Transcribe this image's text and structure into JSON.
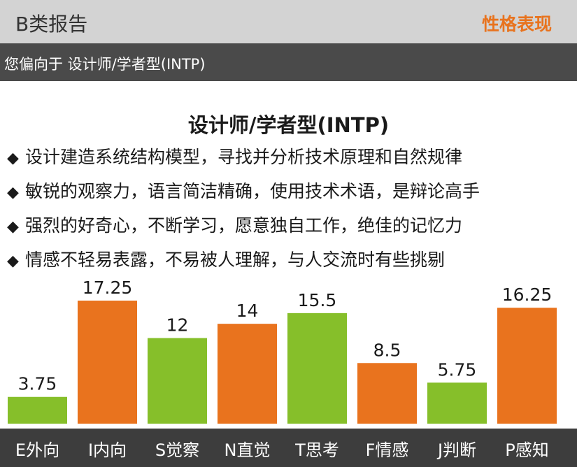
{
  "header": {
    "report_title": "B类报告",
    "section_label": "性格表现"
  },
  "subheader": {
    "text": "您偏向于 设计师/学者型(INTP)"
  },
  "content": {
    "type_title": "设计师/学者型(INTP)",
    "bullet_icon": "diamond-bullet-icon",
    "traits": [
      "设计建造系统结构模型，寻找并分析技术原理和自然规律",
      "敏锐的观察力，语言简洁精确，使用技术术语，是辩论高手",
      "强烈的好奇心，不断学习，愿意独自工作，绝佳的记忆力",
      "情感不轻易表露，不易被人理解，与人交流时有些挑剔"
    ]
  },
  "colors": {
    "green": "#86bf2a",
    "orange": "#e9731e",
    "accent_text": "#e8731e",
    "header_bg": "#d3d3d3",
    "subheader_bg": "#4a4a4a",
    "axis_bg": "#3d3d3d"
  },
  "chart_data": {
    "type": "bar",
    "title": "",
    "xlabel": "",
    "ylabel": "",
    "categories": [
      "E外向",
      "I内向",
      "S觉察",
      "N直觉",
      "T思考",
      "F情感",
      "J判断",
      "P感知"
    ],
    "values": [
      3.75,
      17.25,
      12,
      14,
      15.5,
      8.5,
      5.75,
      16.25
    ],
    "value_labels": [
      "3.75",
      "17.25",
      "12",
      "14",
      "15.5",
      "8.5",
      "5.75",
      "16.25"
    ],
    "bar_colors": [
      "#86bf2a",
      "#e9731e",
      "#86bf2a",
      "#e9731e",
      "#86bf2a",
      "#e9731e",
      "#86bf2a",
      "#e9731e"
    ],
    "ylim": [
      0,
      17.25
    ],
    "grid": false,
    "legend": "none"
  }
}
